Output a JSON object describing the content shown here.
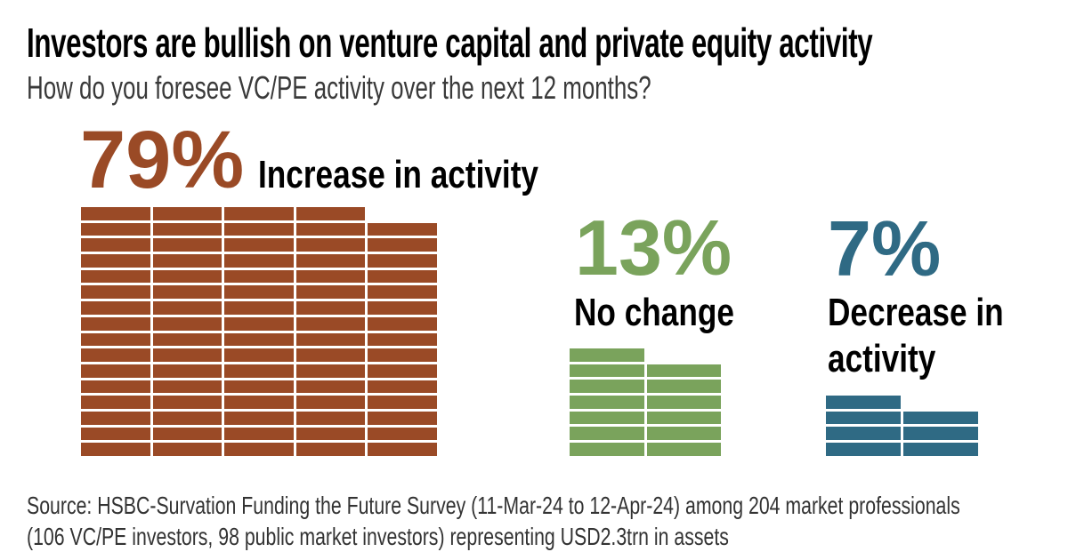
{
  "header": {
    "title": "Investors are bullish on venture capital and private equity activity",
    "subtitle": "How do you foresee VC/PE activity over the next 12 months?"
  },
  "chart_data": {
    "type": "waffle",
    "title": "Investors are bullish on venture capital and private equity activity",
    "question": "How do you foresee VC/PE activity over the next 12 months?",
    "unit_per_block_percent": 1,
    "categories": [
      "Increase in activity",
      "No change",
      "Decrease in activity"
    ],
    "values": [
      79,
      13,
      7
    ],
    "series": [
      {
        "name": "Increase in activity",
        "value": 79,
        "percent_label": "79%",
        "color": "#9A4A26",
        "blocks": 79,
        "grid": {
          "columns": 5,
          "left": 91,
          "top": 233,
          "block_w": 77.6,
          "block_h": 14.7,
          "gap": 3
        }
      },
      {
        "name": "No change",
        "value": 13,
        "percent_label": "13%",
        "color": "#7AA35C",
        "blocks": 13,
        "grid": {
          "columns": 2,
          "left": 640,
          "top": 392,
          "block_w": 83.5,
          "block_h": 14.7,
          "gap": 3
        }
      },
      {
        "name": "Decrease in activity",
        "value": 7,
        "percent_label": "7%",
        "color": "#2F6A84",
        "blocks": 7,
        "grid": {
          "columns": 2,
          "left": 928,
          "top": 445,
          "block_w": 84,
          "block_h": 14.7,
          "gap": 3
        }
      }
    ],
    "layout": {
      "legend": "none",
      "grid_lines": "off",
      "blocks_bottom_aligned_y": 513
    }
  },
  "footer": {
    "source_line1": "Source: HSBC-Survation Funding the Future Survey (11-Mar-24 to 12-Apr-24) among 204 market professionals",
    "source_line2": "(106 VC/PE investors, 98 public market investors) representing USD2.3trn in assets"
  }
}
